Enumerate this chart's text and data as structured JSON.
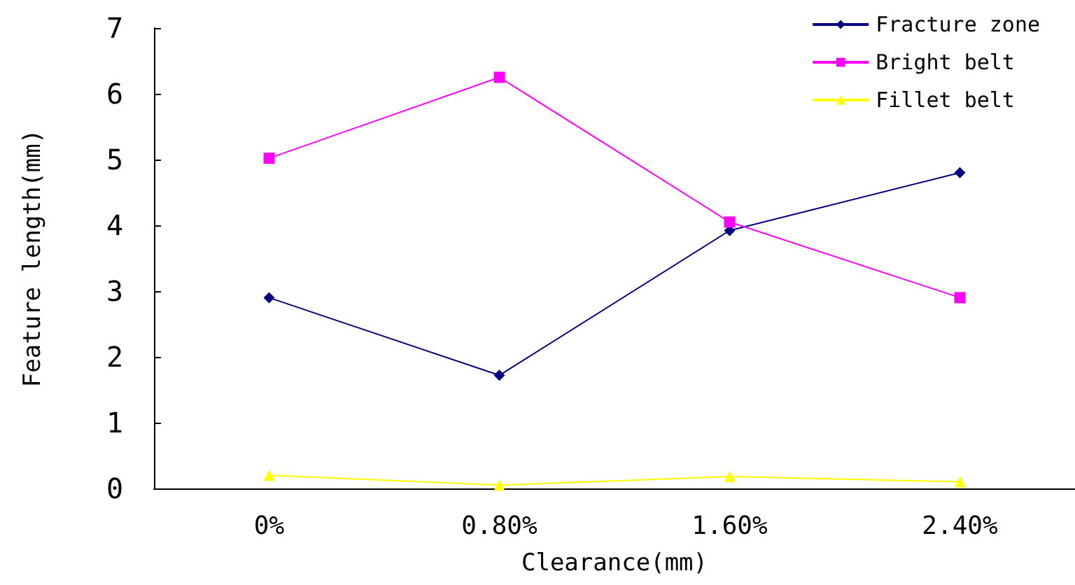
{
  "chart_data": {
    "type": "line",
    "xlabel": "Clearance(mm)",
    "ylabel": "Feature length(mm)",
    "categories": [
      "0%",
      "0.80%",
      "1.60%",
      "2.40%"
    ],
    "series": [
      {
        "name": "Fracture zone",
        "color": "#000080",
        "marker": "diamond",
        "values": [
          2.9,
          1.72,
          3.92,
          4.8
        ]
      },
      {
        "name": "Bright belt",
        "color": "#ff00ff",
        "marker": "square",
        "values": [
          5.02,
          6.25,
          4.05,
          2.9
        ]
      },
      {
        "name": "Fillet belt",
        "color": "#ffff00",
        "marker": "triangle",
        "values": [
          0.2,
          0.05,
          0.18,
          0.1
        ]
      }
    ],
    "ylim": [
      0,
      7
    ],
    "yticks": [
      0,
      1,
      2,
      3,
      4,
      5,
      6,
      7
    ],
    "grid": false,
    "legend": "top right",
    "line_style": "solid"
  }
}
